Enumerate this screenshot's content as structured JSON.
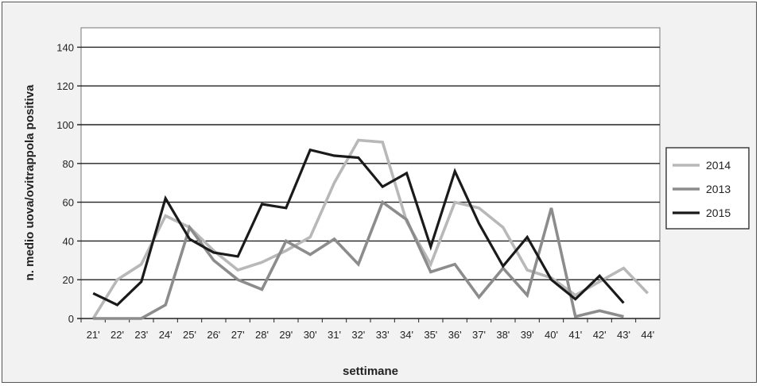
{
  "chart_data": {
    "type": "line",
    "categories": [
      "21'",
      "22'",
      "23'",
      "24'",
      "25'",
      "26'",
      "27'",
      "28'",
      "29'",
      "30'",
      "31'",
      "32'",
      "33'",
      "34'",
      "35'",
      "36'",
      "37'",
      "38'",
      "39'",
      "40'",
      "41'",
      "42'",
      "43'",
      "44'"
    ],
    "xlabel": "settimane",
    "ylabel": "n. medio uova/ovitrappola positiva",
    "ylim": [
      0,
      150
    ],
    "yticks": [
      0,
      20,
      40,
      60,
      80,
      100,
      120,
      140
    ],
    "grid": true,
    "legend_position": "right",
    "series": [
      {
        "name": "2014",
        "color": "#b8b8b8",
        "values": [
          0,
          20,
          28,
          53,
          47,
          35,
          25,
          29,
          35,
          42,
          70,
          92,
          91,
          50,
          28,
          60,
          57,
          47,
          25,
          21,
          12,
          19,
          26,
          13
        ]
      },
      {
        "name": "2013",
        "color": "#8c8c8c",
        "values": [
          0,
          0,
          0,
          7,
          47,
          30,
          20,
          15,
          40,
          33,
          41,
          28,
          60,
          51,
          24,
          28,
          11,
          26,
          12,
          57,
          1,
          4,
          1,
          null
        ]
      },
      {
        "name": "2015",
        "color": "#1a1a1a",
        "values": [
          13,
          7,
          19,
          62,
          41,
          34,
          32,
          59,
          57,
          87,
          84,
          83,
          68,
          75,
          37,
          76,
          49,
          27,
          42,
          20,
          10,
          22,
          8,
          null
        ]
      }
    ]
  }
}
